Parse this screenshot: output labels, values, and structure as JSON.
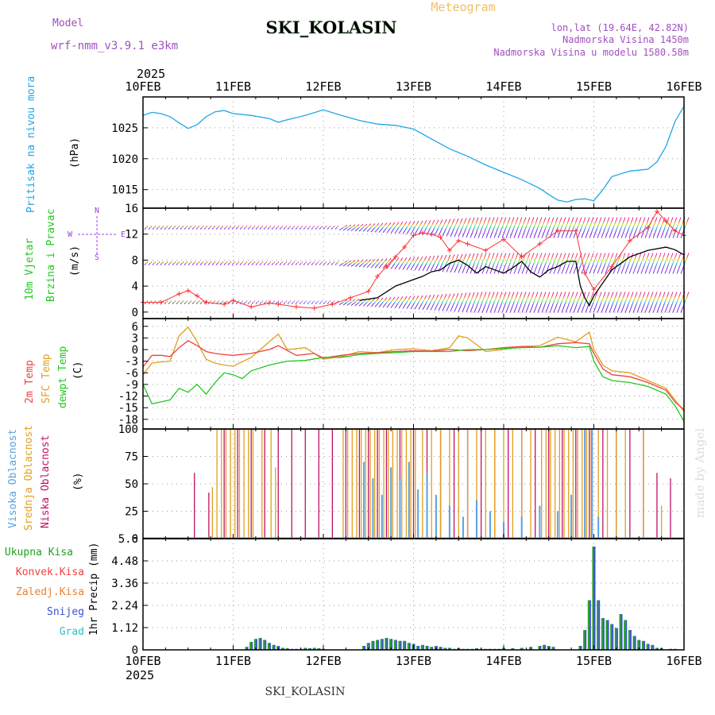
{
  "header": {
    "model_label": "Model",
    "model_name": "wrf-nmm_v3.9.1 e3km",
    "title": "SKI_KOLASIN",
    "meteogram": "Meteogram",
    "lonlat": "lon,lat (19.64E, 42.82N)",
    "elevation": "Nadmorska Visina 1450m",
    "model_elevation": "Nadmorska Visina u modelu 1580.58m",
    "footer_title": "SKI_KOLASIN",
    "credit": "made by Angel",
    "year_top": "2025",
    "year_bottom": "2025"
  },
  "colors": {
    "pressure": "#1fa5e6",
    "temp": "#f04040",
    "sfc": "#e0a020",
    "dewpt": "#20c820",
    "cloud_high": "#5aa0e0",
    "cloud_mid": "#e0a020",
    "cloud_low": "#c0106a",
    "wind_speed": "#000000",
    "gust": "#ff3030",
    "wind_arrow": "#8a2be2",
    "precip_total": "#20a020",
    "snow": "#3a50d0",
    "grid": "#999999"
  },
  "chart_data": [
    {
      "type": "line",
      "title": "Pritisak na nivou mora",
      "ylabel": "(hPa)",
      "ylim": [
        1012,
        1030
      ],
      "yticks": [
        "1015",
        "1020",
        "1025"
      ],
      "ytick_values": [
        1015,
        1020,
        1025
      ],
      "x_categories": [
        "10FEB",
        "11FEB",
        "12FEB",
        "13FEB",
        "14FEB",
        "15FEB",
        "16FEB"
      ],
      "series": [
        {
          "name": "Pressure",
          "x": [
            0,
            0.1,
            0.2,
            0.3,
            0.4,
            0.5,
            0.6,
            0.7,
            0.8,
            0.9,
            1.0,
            1.2,
            1.4,
            1.5,
            1.6,
            1.8,
            2.0,
            2.2,
            2.4,
            2.6,
            2.8,
            3.0,
            3.2,
            3.4,
            3.6,
            3.8,
            4.0,
            4.2,
            4.4,
            4.5,
            4.6,
            4.7,
            4.8,
            4.9,
            5.0,
            5.1,
            5.2,
            5.4,
            5.6,
            5.7,
            5.8,
            5.9,
            6.0
          ],
          "values": [
            1027.0,
            1027.5,
            1027.3,
            1026.8,
            1025.8,
            1024.9,
            1025.5,
            1026.8,
            1027.6,
            1027.8,
            1027.3,
            1027.0,
            1026.5,
            1025.9,
            1026.3,
            1027.0,
            1027.9,
            1027.0,
            1026.2,
            1025.6,
            1025.4,
            1024.8,
            1023.2,
            1021.6,
            1020.4,
            1019.0,
            1017.8,
            1016.6,
            1015.2,
            1014.2,
            1013.3,
            1013.0,
            1013.4,
            1013.5,
            1013.2,
            1015.0,
            1017.1,
            1018.0,
            1018.3,
            1019.5,
            1022.0,
            1026.0,
            1028.5
          ]
        }
      ]
    },
    {
      "type": "line",
      "title": "10m Vjetar Brzina i Pravac",
      "ylabel": "(m/s)",
      "ylim": [
        -1,
        16
      ],
      "yticks": [
        "0",
        "4",
        "8",
        "12",
        "16"
      ],
      "ytick_values": [
        0,
        4,
        8,
        12,
        16
      ],
      "compass": [
        "N",
        "W",
        "E",
        "S"
      ],
      "series": [
        {
          "name": "Wind speed",
          "x": [
            2.4,
            2.6,
            2.8,
            3.0,
            3.1,
            3.2,
            3.3,
            3.4,
            3.5,
            3.6,
            3.7,
            3.8,
            3.9,
            4.0,
            4.1,
            4.2,
            4.3,
            4.4,
            4.5,
            4.6,
            4.7,
            4.8,
            4.85,
            4.9,
            4.95,
            5.0,
            5.1,
            5.2,
            5.4,
            5.6,
            5.8,
            5.9,
            6.0
          ],
          "values": [
            1.8,
            2.2,
            4.0,
            5.0,
            5.5,
            6.2,
            6.5,
            7.5,
            8.0,
            7.2,
            6.0,
            7.0,
            6.5,
            6.0,
            6.8,
            7.8,
            6.2,
            5.4,
            6.5,
            7.0,
            7.8,
            7.8,
            4.0,
            2.2,
            1.0,
            2.5,
            4.5,
            6.5,
            8.5,
            9.5,
            10.0,
            9.6,
            8.8
          ]
        },
        {
          "name": "Gust",
          "x": [
            0,
            0.2,
            0.4,
            0.5,
            0.6,
            0.7,
            0.9,
            1.0,
            1.2,
            1.4,
            1.5,
            1.7,
            1.9,
            2.1,
            2.3,
            2.5,
            2.6,
            2.7,
            2.8,
            2.9,
            3.0,
            3.1,
            3.2,
            3.3,
            3.4,
            3.5,
            3.6,
            3.8,
            4.0,
            4.2,
            4.4,
            4.6,
            4.8,
            4.9,
            5.0,
            5.2,
            5.4,
            5.6,
            5.7,
            5.8,
            5.9,
            6.0
          ],
          "values": [
            1.5,
            1.5,
            2.8,
            3.3,
            2.5,
            1.5,
            1.2,
            1.8,
            0.8,
            1.4,
            1.2,
            0.8,
            0.6,
            1.2,
            2.2,
            3.2,
            5.5,
            7.0,
            8.5,
            10.0,
            11.8,
            12.2,
            12.0,
            11.5,
            9.5,
            11.0,
            10.5,
            9.5,
            11.2,
            8.5,
            10.5,
            12.5,
            12.5,
            6.0,
            3.5,
            7.0,
            11.0,
            13.0,
            15.5,
            14.0,
            12.5,
            11.8
          ]
        }
      ]
    },
    {
      "type": "line",
      "title": "2m Temp / SFC Temp / dewpt Temp",
      "ylabel": "(C)",
      "ylim": [
        -20.5,
        8
      ],
      "yticks": [
        "6",
        "3",
        "0",
        "-3",
        "-6",
        "-9",
        "-12",
        "-15",
        "-18"
      ],
      "ytick_values": [
        6,
        3,
        0,
        -3,
        -6,
        -9,
        -12,
        -15,
        -18
      ],
      "series": [
        {
          "name": "2m Temp",
          "x": [
            0,
            0.1,
            0.2,
            0.3,
            0.4,
            0.5,
            0.6,
            0.7,
            0.8,
            0.9,
            1.0,
            1.2,
            1.4,
            1.5,
            1.7,
            1.9,
            2.0,
            2.2,
            2.4,
            2.6,
            2.8,
            3.0,
            3.2,
            3.4,
            3.6,
            3.8,
            4.0,
            4.2,
            4.4,
            4.6,
            4.8,
            4.95,
            5.0,
            5.1,
            5.2,
            5.4,
            5.6,
            5.8,
            5.9,
            6.0
          ],
          "values": [
            -4.5,
            -1.5,
            -1.5,
            -1.8,
            0.5,
            2.3,
            1.0,
            -0.5,
            -1.0,
            -1.3,
            -1.5,
            -1.0,
            0.0,
            1.0,
            -1.5,
            -1.0,
            -2.2,
            -1.5,
            -1.0,
            -0.8,
            -0.5,
            -0.3,
            -0.4,
            0.0,
            -0.3,
            0.0,
            0.5,
            0.8,
            0.6,
            1.5,
            1.8,
            1.5,
            -1.0,
            -5.0,
            -6.5,
            -7.0,
            -8.5,
            -10.5,
            -13.5,
            -15.5
          ]
        },
        {
          "name": "SFC Temp",
          "x": [
            0,
            0.1,
            0.2,
            0.3,
            0.4,
            0.5,
            0.6,
            0.7,
            0.8,
            0.9,
            1.0,
            1.2,
            1.4,
            1.5,
            1.6,
            1.8,
            2.0,
            2.2,
            2.4,
            2.6,
            2.8,
            3.0,
            3.2,
            3.4,
            3.5,
            3.6,
            3.8,
            4.0,
            4.2,
            4.4,
            4.6,
            4.8,
            4.95,
            5.0,
            5.1,
            5.2,
            5.4,
            5.6,
            5.8,
            5.9,
            6.0
          ],
          "values": [
            -6.5,
            -3.5,
            -3.2,
            -3.0,
            3.5,
            5.8,
            2.0,
            -2.5,
            -3.5,
            -4.0,
            -4.3,
            -2.0,
            2.0,
            4.0,
            0.0,
            0.5,
            -2.5,
            -1.8,
            -0.5,
            -0.8,
            0.0,
            0.2,
            -0.3,
            0.5,
            3.5,
            3.0,
            -0.5,
            0.0,
            0.8,
            1.0,
            3.2,
            2.0,
            4.5,
            0.0,
            -4.0,
            -5.5,
            -6.0,
            -8.0,
            -10.0,
            -13.0,
            -16.0
          ]
        },
        {
          "name": "dewpt Temp",
          "x": [
            0,
            0.1,
            0.2,
            0.3,
            0.4,
            0.5,
            0.6,
            0.7,
            0.8,
            0.9,
            1.0,
            1.1,
            1.2,
            1.4,
            1.6,
            1.8,
            2.0,
            2.2,
            2.4,
            2.6,
            2.8,
            3.0,
            3.2,
            3.4,
            3.6,
            3.8,
            4.0,
            4.2,
            4.4,
            4.6,
            4.8,
            4.95,
            5.0,
            5.1,
            5.2,
            5.4,
            5.6,
            5.8,
            5.9,
            6.0
          ],
          "values": [
            -9.0,
            -14.0,
            -13.5,
            -13.0,
            -10.0,
            -11.0,
            -9.0,
            -11.5,
            -8.5,
            -6.0,
            -6.5,
            -7.5,
            -5.5,
            -4.0,
            -3.0,
            -2.8,
            -2.0,
            -2.0,
            -1.3,
            -1.0,
            -0.8,
            -0.5,
            -0.5,
            -0.5,
            0.0,
            0.0,
            0.3,
            0.5,
            0.6,
            1.0,
            0.5,
            0.8,
            -3.0,
            -7.0,
            -8.0,
            -8.5,
            -9.5,
            -11.5,
            -14.5,
            -18.5
          ]
        }
      ]
    },
    {
      "type": "bar",
      "title": "Visoka / Srednja / Niska Oblacnost",
      "ylabel": "(%)",
      "ylim": [
        0,
        100
      ],
      "yticks": [
        "0",
        "25",
        "50",
        "75",
        "100"
      ],
      "ytick_values": [
        0,
        25,
        50,
        75,
        100
      ],
      "series": [
        {
          "name": "Niska Oblacnost",
          "x": [
            0.57,
            0.73,
            0.9,
            1.05,
            1.2,
            1.35,
            1.5,
            1.65,
            1.8,
            1.95,
            2.1,
            2.25,
            2.4,
            2.5,
            2.6,
            2.7,
            2.85,
            3.0,
            3.15,
            3.3,
            3.45,
            3.6,
            3.75,
            3.9,
            4.05,
            4.2,
            4.35,
            4.5,
            4.65,
            4.8,
            4.95,
            5.1,
            5.25,
            5.4,
            5.55,
            5.7,
            5.85
          ],
          "values": [
            60,
            42,
            100,
            100,
            100,
            100,
            100,
            100,
            100,
            100,
            100,
            100,
            100,
            100,
            100,
            100,
            100,
            100,
            100,
            100,
            100,
            100,
            100,
            100,
            100,
            100,
            100,
            100,
            100,
            100,
            100,
            100,
            100,
            100,
            100,
            60,
            55
          ]
        },
        {
          "name": "Srednja Oblacnost",
          "x": [
            0.77,
            0.82,
            0.87,
            0.92,
            0.97,
            1.02,
            1.07,
            1.12,
            1.17,
            1.22,
            1.32,
            1.42,
            1.47,
            2.22,
            2.27,
            2.32,
            2.37,
            2.42,
            2.47,
            2.52,
            2.57,
            2.62,
            2.67,
            2.72,
            2.77,
            2.82,
            2.87,
            2.92,
            2.97,
            3.02,
            3.1,
            3.2,
            3.3,
            3.4,
            3.5,
            3.6,
            3.7,
            3.8,
            3.9,
            4.0,
            4.1,
            4.2,
            4.3,
            4.42,
            4.47,
            4.52,
            4.57,
            4.62,
            4.67,
            4.72,
            4.77,
            4.82,
            4.87,
            4.92,
            4.97,
            5.05,
            5.15,
            5.25,
            5.35,
            5.55,
            5.75
          ],
          "values": [
            47,
            100,
            100,
            100,
            100,
            100,
            100,
            100,
            100,
            100,
            100,
            100,
            65,
            100,
            100,
            100,
            100,
            100,
            100,
            100,
            100,
            100,
            100,
            100,
            100,
            100,
            100,
            100,
            100,
            100,
            100,
            100,
            100,
            100,
            100,
            100,
            100,
            100,
            100,
            100,
            100,
            100,
            100,
            100,
            100,
            100,
            100,
            100,
            100,
            100,
            100,
            100,
            100,
            100,
            100,
            100,
            100,
            100,
            100,
            100,
            30
          ]
        },
        {
          "name": "Visoka Oblacnost",
          "x": [
            2.45,
            2.55,
            2.65,
            2.75,
            2.85,
            2.95,
            3.05,
            3.15,
            3.25,
            3.4,
            3.55,
            3.7,
            3.85,
            4.0,
            4.2,
            4.4,
            4.6,
            4.75,
            4.9,
            4.98,
            5.05
          ],
          "values": [
            70,
            55,
            40,
            65,
            55,
            70,
            45,
            60,
            40,
            30,
            20,
            35,
            25,
            15,
            20,
            30,
            25,
            40,
            100,
            100,
            20
          ]
        }
      ]
    },
    {
      "type": "bar",
      "title": "1hr Precip",
      "ylabel": "1hr Precip (mm)",
      "ylim": [
        0,
        5.6
      ],
      "yticks": [
        "0",
        "1.12",
        "2.24",
        "3.36",
        "4.48",
        "5.6"
      ],
      "ytick_values": [
        0,
        1.12,
        2.24,
        3.36,
        4.48,
        5.6
      ],
      "legend": [
        "Ukupna Kisa",
        "Konvek.Kisa",
        "Zaledj.Kisa",
        "Snijeg",
        "Grad"
      ],
      "x_categories": [
        "10FEB",
        "11FEB",
        "12FEB",
        "13FEB",
        "14FEB",
        "15FEB",
        "16FEB"
      ],
      "series": [
        {
          "name": "Snijeg",
          "x": [
            1.15,
            1.2,
            1.25,
            1.3,
            1.35,
            1.4,
            1.45,
            1.5,
            1.55,
            1.6,
            1.65,
            1.7,
            1.75,
            1.8,
            1.85,
            1.9,
            1.95,
            2.0,
            2.45,
            2.5,
            2.55,
            2.6,
            2.65,
            2.7,
            2.75,
            2.8,
            2.85,
            2.9,
            2.95,
            3.0,
            3.05,
            3.1,
            3.15,
            3.2,
            3.25,
            3.3,
            3.35,
            3.4,
            3.45,
            3.5,
            3.55,
            3.6,
            3.65,
            3.7,
            3.75,
            3.8,
            3.85,
            3.9,
            3.95,
            4.0,
            4.1,
            4.2,
            4.3,
            4.4,
            4.45,
            4.5,
            4.55,
            4.85,
            4.9,
            4.95,
            5.0,
            5.05,
            5.1,
            5.15,
            5.2,
            5.25,
            5.3,
            5.35,
            5.4,
            5.45,
            5.5,
            5.55,
            5.6,
            5.65,
            5.7,
            5.75,
            5.85,
            5.9
          ],
          "values": [
            0.15,
            0.4,
            0.55,
            0.6,
            0.5,
            0.35,
            0.25,
            0.2,
            0.1,
            0.08,
            0.05,
            0.05,
            0.05,
            0.1,
            0.08,
            0.1,
            0.08,
            0.05,
            0.2,
            0.35,
            0.45,
            0.5,
            0.55,
            0.6,
            0.55,
            0.5,
            0.45,
            0.45,
            0.35,
            0.3,
            0.2,
            0.25,
            0.2,
            0.15,
            0.2,
            0.15,
            0.1,
            0.1,
            0.05,
            0.08,
            0.05,
            0.05,
            0.05,
            0.08,
            0.05,
            0.05,
            0.05,
            0.05,
            0.05,
            0.1,
            0.08,
            0.1,
            0.15,
            0.2,
            0.25,
            0.2,
            0.15,
            0.2,
            1.0,
            2.5,
            5.2,
            2.5,
            1.6,
            1.5,
            1.3,
            1.1,
            1.8,
            1.5,
            1.0,
            0.7,
            0.5,
            0.45,
            0.3,
            0.25,
            0.1,
            0.08,
            0.05,
            0.05
          ]
        }
      ]
    }
  ],
  "wind_arrow_rows": [
    {
      "label": "lower",
      "speed_level": 1.5
    },
    {
      "label": "middle",
      "speed_level": 7.5
    },
    {
      "label": "upper",
      "speed_level": 13.0
    }
  ]
}
